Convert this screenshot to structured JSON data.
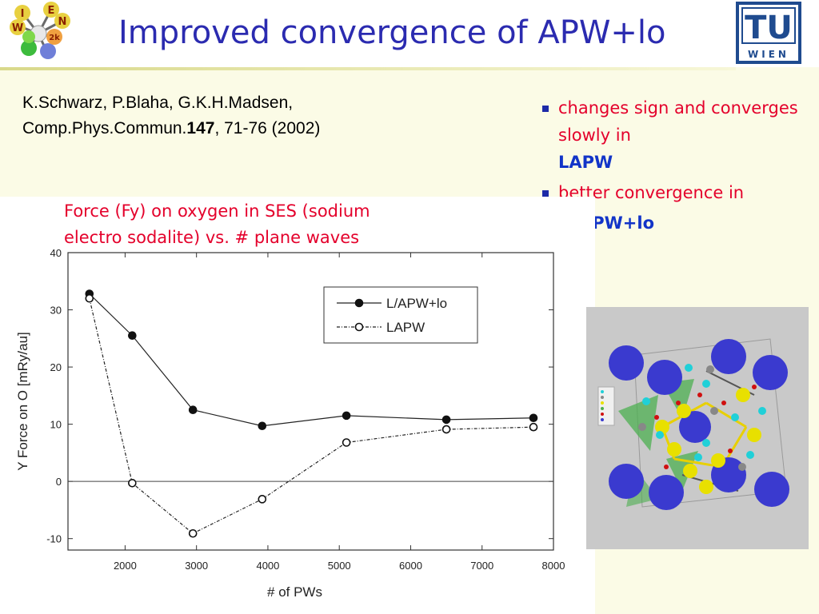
{
  "slide": {
    "title": "Improved convergence of APW+lo",
    "citation": {
      "line1": "K.Schwarz, P.Blaha, G.K.H.Madsen,",
      "line2_prefix": "Comp.Phys.Commun.",
      "line2_volume": "147",
      "line2_suffix": ", 71-76 (2002)"
    },
    "bullets": [
      {
        "text": "changes sign and converges slowly in",
        "highlight": "LAPW"
      },
      {
        "text": "better convergence in",
        "highlight": "APW+lo"
      }
    ],
    "chart_caption": {
      "line1": "Force (Fy) on oxygen in SES (sodium",
      "line2": "electro sodalite) vs. # plane waves"
    },
    "logo_left": {
      "letters": [
        "I",
        "E",
        "N",
        "W",
        "2k"
      ]
    },
    "logo_right": {
      "main": "TU",
      "sub": "WIEN"
    }
  },
  "colors": {
    "title": "#2b2bb0",
    "red_text": "#e4002b",
    "highlight_blue": "#1234c8",
    "bullet_square": "#1d2aa8",
    "slide_bg": "#fbfbe6"
  },
  "chart_data": {
    "type": "line",
    "xlabel": "# of PWs",
    "ylabel": "Y Force on O  [mRy/au]",
    "xlim": [
      1200,
      8000
    ],
    "ylim": [
      -12,
      40
    ],
    "xticks": [
      2000,
      3000,
      4000,
      5000,
      6000,
      7000,
      8000
    ],
    "yticks": [
      -10,
      0,
      10,
      20,
      30,
      40
    ],
    "zero_line": true,
    "legend": "top-right",
    "series": [
      {
        "name": "L/APW+lo",
        "marker": "filled-circle",
        "line": "solid",
        "x": [
          1500,
          2100,
          2950,
          3920,
          5100,
          6500,
          7720
        ],
        "y": [
          32.8,
          25.5,
          12.5,
          9.7,
          11.5,
          10.8,
          11.1
        ]
      },
      {
        "name": "LAPW",
        "marker": "open-circle",
        "line": "dash-dot",
        "x": [
          1500,
          2100,
          2950,
          3920,
          5100,
          6500,
          7720
        ],
        "y": [
          32.0,
          -0.3,
          -9.1,
          -3.1,
          6.8,
          9.1,
          9.5
        ]
      }
    ]
  }
}
